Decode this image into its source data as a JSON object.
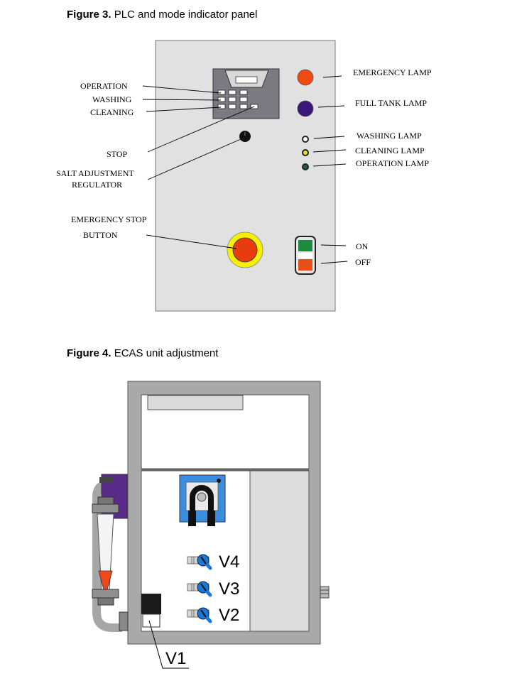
{
  "figure3": {
    "number": "Figure 3.",
    "title": "PLC and mode indicator panel",
    "left_labels": {
      "operation": "OPERATION",
      "washing": "WASHING",
      "cleaning": "CLEANING",
      "stop": "STOP",
      "salt_line1": "SALT ADJUSTMENT",
      "salt_line2": "REGULATOR",
      "estop_line1": "EMERGENCY STOP",
      "estop_line2": "BUTTON"
    },
    "right_labels": {
      "emergency_lamp": "EMERGENCY LAMP",
      "full_tank_lamp": "FULL TANK LAMP",
      "washing_lamp": "WASHING LAMP",
      "cleaning_lamp": "CLEANING LAMP",
      "operation_lamp": "OPERATION LAMP",
      "on": "ON",
      "off": "OFF"
    },
    "colors": {
      "panel": "#e1e1e1",
      "emergency_lamp": "#f04a14",
      "full_tank_lamp": "#3a1878",
      "cleaning_lamp": "#f0e020",
      "operation_lamp": "#1e6040",
      "estop_ring": "#f4f000",
      "estop_button": "#e63c10",
      "on_green": "#1e8a40",
      "off_red": "#e65018"
    }
  },
  "figure4": {
    "number": "Figure 4.",
    "title": "ECAS unit adjustment",
    "valves": [
      "V4",
      "V3",
      "V2"
    ],
    "v1_label": "V1",
    "colors": {
      "frame": "#a9a9a9",
      "pump_blue": "#3a8ee0",
      "valve_blue": "#1a78d8",
      "flow_red": "#f04818",
      "purple": "#5a2a8a"
    }
  }
}
